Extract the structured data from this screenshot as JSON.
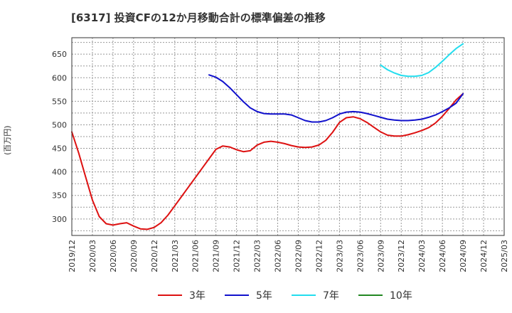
{
  "title": "[6317]  投資CFの12か月移動合計の標準偏差の推移",
  "chart_data": {
    "type": "line",
    "ylabel": "(百万円)",
    "xlabel": "",
    "ylim": [
      265,
      685
    ],
    "yticks": [
      300,
      350,
      400,
      450,
      500,
      550,
      600,
      650
    ],
    "xticks": [
      "2019/12",
      "2020/03",
      "2020/06",
      "2020/09",
      "2020/12",
      "2021/03",
      "2021/06",
      "2021/09",
      "2021/12",
      "2022/03",
      "2022/06",
      "2022/09",
      "2022/12",
      "2023/03",
      "2023/06",
      "2023/09",
      "2023/12",
      "2024/03",
      "2024/06",
      "2024/09",
      "2024/12",
      "2025/03"
    ],
    "grid": true,
    "legend_position": "bottom",
    "colors": {
      "3年": "#dd1111",
      "5年": "#1111cc",
      "7年": "#22ddee",
      "10年": "#228822"
    },
    "series": [
      {
        "name": "3年",
        "color": "#dd1111",
        "x": [
          "2019/12",
          "2020/01",
          "2020/02",
          "2020/03",
          "2020/04",
          "2020/05",
          "2020/06",
          "2020/07",
          "2020/08",
          "2020/09",
          "2020/10",
          "2020/11",
          "2020/12",
          "2021/01",
          "2021/02",
          "2021/03",
          "2021/04",
          "2021/05",
          "2021/06",
          "2021/07",
          "2021/08",
          "2021/09",
          "2021/10",
          "2021/11",
          "2021/12",
          "2022/01",
          "2022/02",
          "2022/03",
          "2022/04",
          "2022/05",
          "2022/06",
          "2022/07",
          "2022/08",
          "2022/09",
          "2022/10",
          "2022/11",
          "2022/12",
          "2023/01",
          "2023/02",
          "2023/03",
          "2023/04",
          "2023/05",
          "2023/06",
          "2023/07",
          "2023/08",
          "2023/09",
          "2023/10",
          "2023/11",
          "2023/12",
          "2024/01",
          "2024/02",
          "2024/03",
          "2024/04",
          "2024/05",
          "2024/06",
          "2024/07",
          "2024/08",
          "2024/09"
        ],
        "values": [
          485,
          440,
          390,
          340,
          305,
          290,
          287,
          290,
          292,
          285,
          279,
          278,
          282,
          292,
          308,
          328,
          348,
          368,
          388,
          408,
          428,
          448,
          455,
          453,
          447,
          443,
          445,
          457,
          463,
          465,
          463,
          460,
          456,
          453,
          452,
          453,
          457,
          467,
          484,
          505,
          515,
          517,
          513,
          505,
          495,
          485,
          478,
          476,
          476,
          479,
          483,
          488,
          494,
          504,
          518,
          535,
          553,
          566
        ]
      },
      {
        "name": "5年",
        "color": "#1111cc",
        "x": [
          "2021/08",
          "2021/09",
          "2021/10",
          "2021/11",
          "2021/12",
          "2022/01",
          "2022/02",
          "2022/03",
          "2022/04",
          "2022/05",
          "2022/06",
          "2022/07",
          "2022/08",
          "2022/09",
          "2022/10",
          "2022/11",
          "2022/12",
          "2023/01",
          "2023/02",
          "2023/03",
          "2023/04",
          "2023/05",
          "2023/06",
          "2023/07",
          "2023/08",
          "2023/09",
          "2023/10",
          "2023/11",
          "2023/12",
          "2024/01",
          "2024/02",
          "2024/03",
          "2024/04",
          "2024/05",
          "2024/06",
          "2024/07",
          "2024/08",
          "2024/09"
        ],
        "values": [
          606,
          601,
          592,
          579,
          564,
          549,
          536,
          528,
          524,
          523,
          523,
          523,
          521,
          515,
          509,
          506,
          506,
          509,
          515,
          523,
          527,
          528,
          527,
          524,
          520,
          516,
          512,
          510,
          509,
          509,
          510,
          512,
          516,
          521,
          528,
          536,
          546,
          566
        ]
      },
      {
        "name": "7年",
        "color": "#22ddee",
        "x": [
          "2023/09",
          "2023/10",
          "2023/11",
          "2023/12",
          "2024/01",
          "2024/02",
          "2024/03",
          "2024/04",
          "2024/05",
          "2024/06",
          "2024/07",
          "2024/08",
          "2024/09"
        ],
        "values": [
          627,
          617,
          610,
          605,
          603,
          603,
          605,
          611,
          622,
          635,
          649,
          662,
          672
        ]
      },
      {
        "name": "10年",
        "color": "#228822",
        "x": [],
        "values": []
      }
    ]
  }
}
